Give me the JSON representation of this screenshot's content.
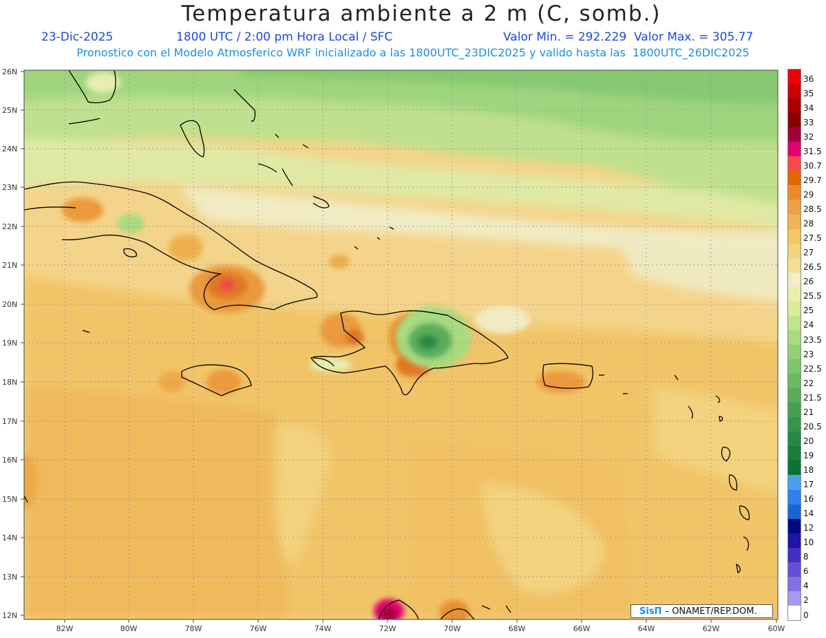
{
  "header": {
    "title": "Temperatura ambiente a 2 m (C, somb.)",
    "date": "23-Dic-2025",
    "time": "1800 UTC / 2:00 pm Hora Local / SFC",
    "minmax": "Valor Min. = 292.229  Valor Max. = 305.77",
    "model_line": "Pronostico con el Modelo Atmosferico WRF inicializado a las 1800UTC_23DIC2025 y valido hasta las  1800UTC_26DIC2025"
  },
  "axes": {
    "lat_labels": [
      "26N",
      "25N",
      "24N",
      "23N",
      "22N",
      "21N",
      "20N",
      "19N",
      "18N",
      "17N",
      "16N",
      "15N",
      "14N",
      "13N",
      "12N"
    ],
    "lon_labels": [
      "82W",
      "80W",
      "78W",
      "76W",
      "74W",
      "72W",
      "70W",
      "68W",
      "66W",
      "64W",
      "62W",
      "60W"
    ]
  },
  "legend": {
    "levels": [
      "36",
      "35",
      "34",
      "33",
      "32",
      "31.5",
      "30.7",
      "29.7",
      "29",
      "28.5",
      "28",
      "27.5",
      "27",
      "26.5",
      "26",
      "25.5",
      "25",
      "24",
      "23.5",
      "23",
      "22.5",
      "22",
      "21.5",
      "21",
      "20.5",
      "20",
      "19",
      "18",
      "17",
      "16",
      "14",
      "12",
      "10",
      "8",
      "6",
      "4",
      "2",
      "0"
    ],
    "colors": [
      "#ee0000",
      "#cc0000",
      "#aa0000",
      "#880000",
      "#a0003a",
      "#e00070",
      "#f84848",
      "#e06a00",
      "#ec8a2a",
      "#eea04a",
      "#f0b455",
      "#f4c565",
      "#f4d47a",
      "#f3df94",
      "#f2ecc7",
      "#e9efa8",
      "#d9ec96",
      "#bfe48a",
      "#a8da80",
      "#92cf76",
      "#7ec36e",
      "#6cb866",
      "#58ad5c",
      "#46a054",
      "#37944c",
      "#268842",
      "#1a7e3a",
      "#0e7230",
      "#4aa0ee",
      "#2f80ea",
      "#1766d8",
      "#000b80",
      "#2214a6",
      "#4130c2",
      "#6450d4",
      "#8470e4",
      "#a898f0",
      "#ffffff"
    ]
  },
  "credit": {
    "logo": "SisΠ",
    "text": " – ONAMET/REP.DOM."
  },
  "map_meta": {
    "region": "Caribbean",
    "lon_range": [
      -83.2,
      -60
    ],
    "lat_range": [
      11.9,
      26
    ]
  }
}
